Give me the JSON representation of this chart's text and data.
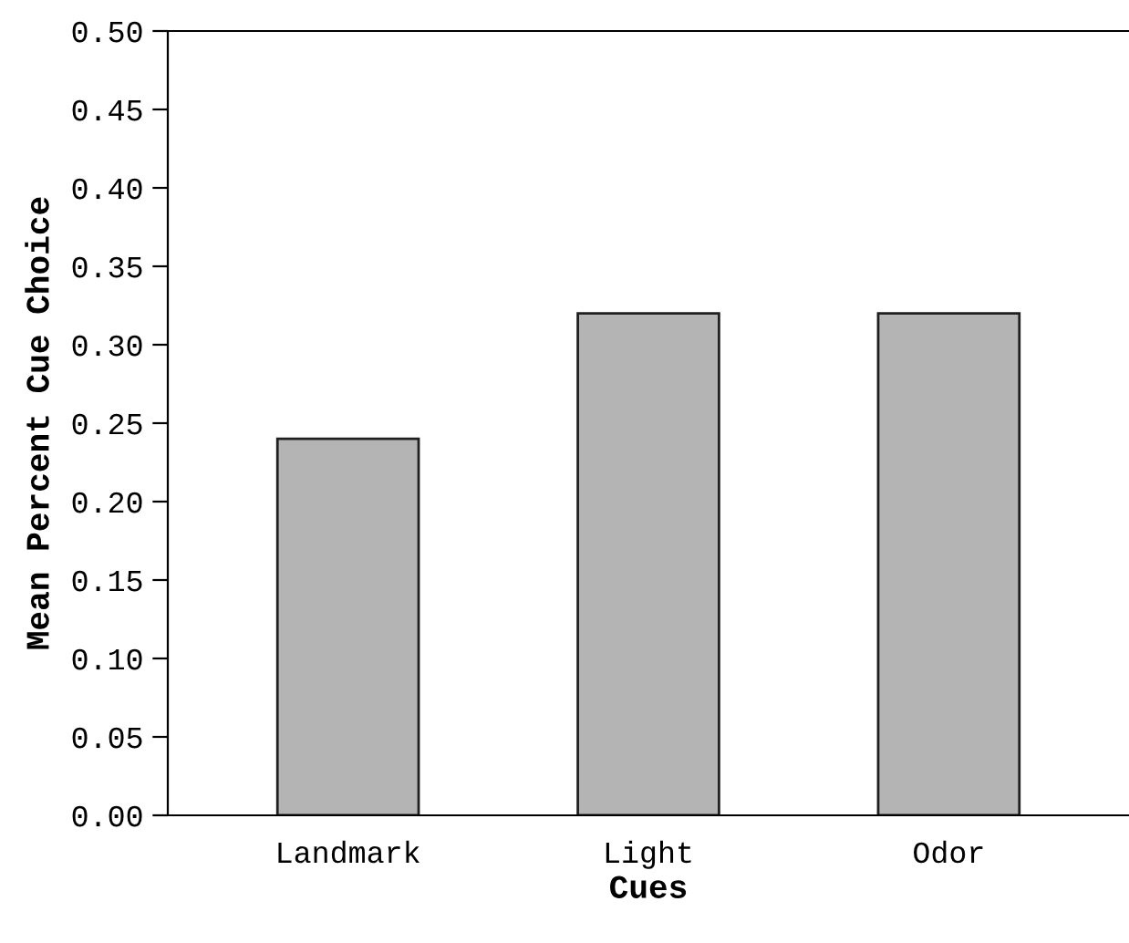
{
  "chart_data": {
    "type": "bar",
    "xlabel": "Cues",
    "ylabel": "Mean Percent Cue Choice",
    "categories": [
      "Landmark",
      "Light",
      "Odor"
    ],
    "values": [
      0.24,
      0.32,
      0.32
    ],
    "color": "#b4b4b4",
    "ylim": [
      0,
      0.5
    ],
    "yticks": [
      {
        "value": 0,
        "label": "0.00"
      },
      {
        "value": 0.05,
        "label": "0.05"
      },
      {
        "value": 0.1,
        "label": "0.10"
      },
      {
        "value": 0.15,
        "label": "0.15"
      },
      {
        "value": 0.2,
        "label": "0.20"
      },
      {
        "value": 0.25,
        "label": "0.25"
      },
      {
        "value": 0.3,
        "label": "0.30"
      },
      {
        "value": 0.35,
        "label": "0.35"
      },
      {
        "value": 0.4,
        "label": "0.40"
      },
      {
        "value": 0.45,
        "label": "0.45"
      },
      {
        "value": 0.5,
        "label": "0.50"
      }
    ],
    "grid": false
  }
}
